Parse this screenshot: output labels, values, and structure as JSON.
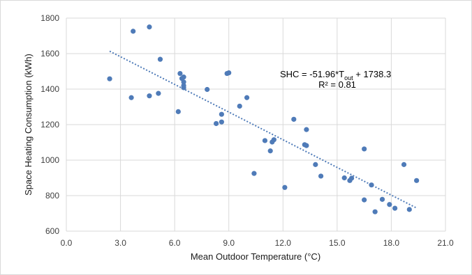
{
  "chart_data": {
    "type": "scatter",
    "xlabel": "Mean Outdoor Temperature (°C)",
    "ylabel": "Space Heating Consumption (kWh)",
    "xlim": [
      0,
      21
    ],
    "ylim": [
      600,
      1800
    ],
    "xticks": [
      "0.0",
      "3.0",
      "6.0",
      "9.0",
      "12.0",
      "15.0",
      "18.0",
      "21.0"
    ],
    "yticks": [
      "600",
      "800",
      "1000",
      "1200",
      "1400",
      "1600",
      "1800"
    ],
    "grid": true,
    "marker_color": "#4f7bb8",
    "trend_color": "#4f7bb8",
    "points": [
      {
        "x": 2.4,
        "y": 1458
      },
      {
        "x": 3.6,
        "y": 1352
      },
      {
        "x": 3.7,
        "y": 1726
      },
      {
        "x": 4.6,
        "y": 1750
      },
      {
        "x": 4.6,
        "y": 1362
      },
      {
        "x": 5.1,
        "y": 1376
      },
      {
        "x": 5.2,
        "y": 1568
      },
      {
        "x": 6.2,
        "y": 1273
      },
      {
        "x": 6.3,
        "y": 1488
      },
      {
        "x": 6.4,
        "y": 1460
      },
      {
        "x": 6.5,
        "y": 1468
      },
      {
        "x": 6.5,
        "y": 1440
      },
      {
        "x": 6.5,
        "y": 1420
      },
      {
        "x": 6.5,
        "y": 1408
      },
      {
        "x": 7.8,
        "y": 1398
      },
      {
        "x": 8.3,
        "y": 1206
      },
      {
        "x": 8.6,
        "y": 1215
      },
      {
        "x": 8.6,
        "y": 1258
      },
      {
        "x": 8.9,
        "y": 1488
      },
      {
        "x": 9.0,
        "y": 1492
      },
      {
        "x": 9.6,
        "y": 1304
      },
      {
        "x": 10.0,
        "y": 1352
      },
      {
        "x": 10.4,
        "y": 925
      },
      {
        "x": 11.0,
        "y": 1110
      },
      {
        "x": 11.3,
        "y": 1052
      },
      {
        "x": 11.4,
        "y": 1102
      },
      {
        "x": 11.5,
        "y": 1115
      },
      {
        "x": 12.1,
        "y": 846
      },
      {
        "x": 12.6,
        "y": 1230
      },
      {
        "x": 13.2,
        "y": 1087
      },
      {
        "x": 13.3,
        "y": 1082
      },
      {
        "x": 13.3,
        "y": 1172
      },
      {
        "x": 13.8,
        "y": 975
      },
      {
        "x": 14.1,
        "y": 910
      },
      {
        "x": 15.4,
        "y": 900
      },
      {
        "x": 15.7,
        "y": 885
      },
      {
        "x": 15.8,
        "y": 898
      },
      {
        "x": 16.5,
        "y": 1063
      },
      {
        "x": 16.5,
        "y": 776
      },
      {
        "x": 16.9,
        "y": 860
      },
      {
        "x": 17.1,
        "y": 709
      },
      {
        "x": 17.5,
        "y": 779
      },
      {
        "x": 17.9,
        "y": 750
      },
      {
        "x": 18.2,
        "y": 729
      },
      {
        "x": 18.7,
        "y": 975
      },
      {
        "x": 19.0,
        "y": 722
      },
      {
        "x": 19.4,
        "y": 885
      }
    ],
    "trendline": {
      "slope": -51.96,
      "intercept": 1738.3,
      "x_start": 2.4,
      "x_end": 19.4
    },
    "annotations": {
      "equation_prefix": "SHC = -51.96*T",
      "equation_sub": "out",
      "equation_suffix": " + 1738.3",
      "r_squared": "R² = 0.81"
    }
  }
}
